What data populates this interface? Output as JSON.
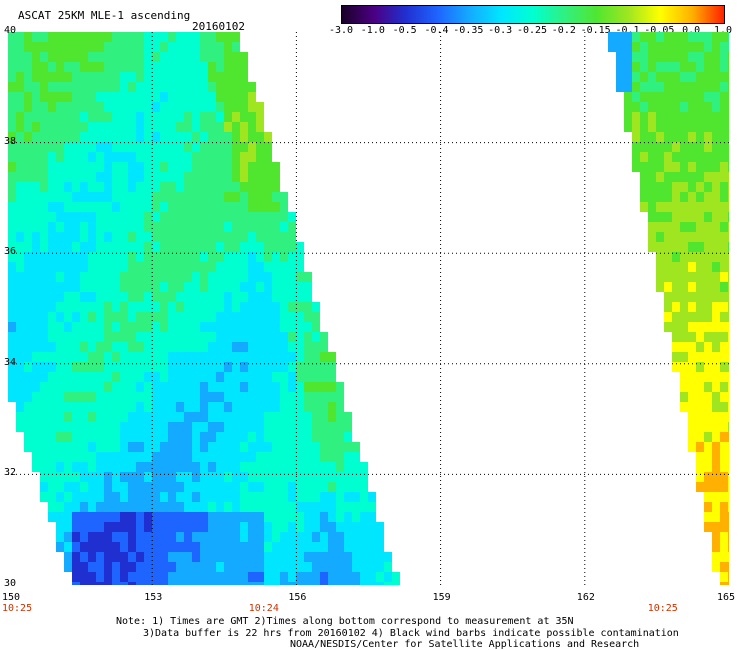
{
  "header": {
    "title": "ASCAT 25KM MLE-1 ascending",
    "date": "20160102"
  },
  "colorbar": {
    "labels": [
      "-3.0",
      "-1.0",
      "-0.5",
      "-0.4",
      "-0.35",
      "-0.3",
      "-0.25",
      "-0.2",
      "-0.15",
      "-0.1",
      "-0.05",
      "0.0",
      "1.0"
    ],
    "colors": [
      "#1a0028",
      "#4b0082",
      "#2030d0",
      "#1e64ff",
      "#14aaff",
      "#00e6ff",
      "#00ffd0",
      "#30f080",
      "#50e630",
      "#a0e620",
      "#ffff00",
      "#ffb000",
      "#ff2000"
    ]
  },
  "axes": {
    "lon_labels": [
      "150",
      "153",
      "156",
      "159",
      "162",
      "165"
    ],
    "lat_labels": [
      "30",
      "32",
      "34",
      "36",
      "38",
      "40"
    ],
    "lon_range": [
      150,
      165
    ],
    "lat_range": [
      30,
      40
    ],
    "grid_lon": [
      153,
      156,
      159,
      162
    ],
    "grid_lat": [
      32,
      34,
      36,
      38
    ]
  },
  "times": [
    {
      "label": "10:25",
      "lon": 150
    },
    {
      "label": "10:24",
      "lon": 155.3
    },
    {
      "label": "10:25",
      "lon": 163.6
    }
  ],
  "notes": {
    "line1": "Note: 1) Times are GMT 2)Times along bottom correspond to measurement at 35N",
    "line2": "3)Data buffer is 22 hrs from 20160102 4) Black wind barbs indicate possible contamination",
    "line3": "NOAA/NESDIS/Center for Satellite Applications and Research"
  }
}
